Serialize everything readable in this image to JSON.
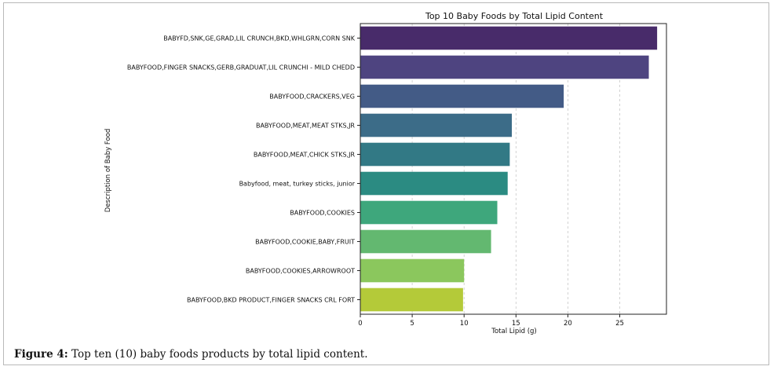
{
  "chart_data": {
    "type": "bar",
    "orientation": "horizontal",
    "title": "Top 10 Baby Foods by Total Lipid Content",
    "xlabel": "Total Lipid (g)",
    "ylabel": "Description of Baby Food",
    "xlim": [
      0,
      29.5
    ],
    "xticks": [
      0,
      5,
      10,
      15,
      20,
      25
    ],
    "grid": "x-dashed",
    "categories": [
      "BABYFD,SNK,GE,GRAD,LIL CRUNCH,BKD,WHLGRN,CORN SNK",
      "BABYFOOD,FINGER SNACKS,GERB,GRADUAT,LIL CRUNCHI - MILD CHEDD",
      "BABYFOOD,CRACKERS,VEG",
      "BABYFOOD,MEAT,MEAT STKS,JR",
      "BABYFOOD,MEAT,CHICK STKS,JR",
      "Babyfood, meat, turkey sticks, junior",
      "BABYFOOD,COOKIES",
      "BABYFOOD,COOKIE,BABY,FRUIT",
      "BABYFOOD,COOKIES,ARROWROOT",
      "BABYFOOD,BKD PRODUCT,FINGER SNACKS CRL FORT"
    ],
    "values": [
      28.6,
      27.8,
      19.6,
      14.6,
      14.4,
      14.2,
      13.2,
      12.6,
      10.0,
      9.9
    ],
    "colors": [
      "#482b6a",
      "#4e4480",
      "#435b86",
      "#3c6c88",
      "#327985",
      "#2b8b82",
      "#3ea77c",
      "#63b870",
      "#8bc75d",
      "#b4ca39"
    ]
  },
  "caption": {
    "label": "Figure 4:",
    "text": " Top ten (10) baby foods products by total lipid content."
  }
}
